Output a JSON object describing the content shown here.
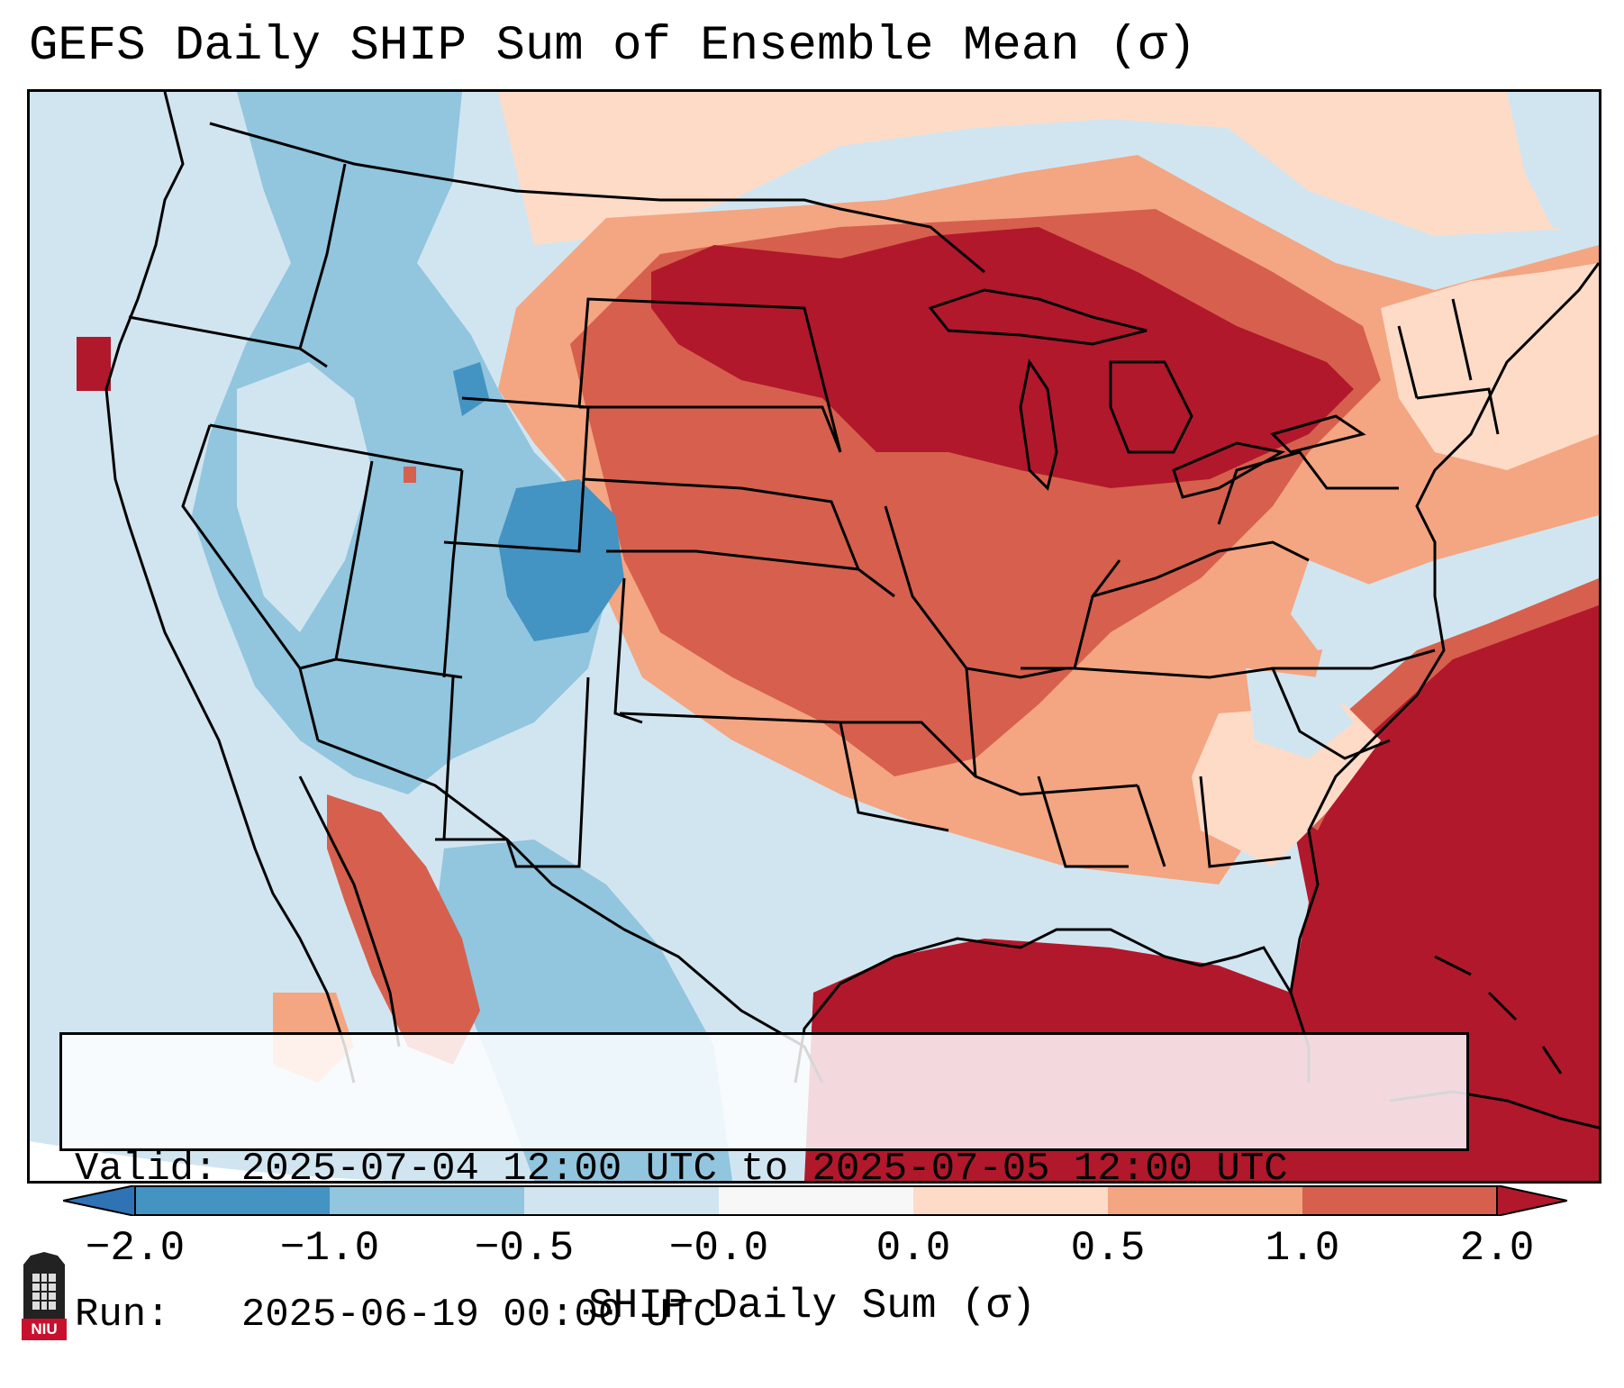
{
  "title": "GEFS Daily SHIP Sum of Ensemble Mean (σ)",
  "info": {
    "valid_label": "Valid:",
    "valid_value": "2025-07-04 12:00 UTC to 2025-07-05 12:00 UTC",
    "run_label": "Run:",
    "run_value": "2025-06-19 00:00 UTC"
  },
  "colorbar": {
    "label": "SHIP Daily Sum (σ)",
    "ticks": [
      "−2.0",
      "−1.0",
      "−0.5",
      "−0.0",
      "0.0",
      "0.5",
      "1.0",
      "2.0"
    ],
    "colors": [
      "#2f73b4",
      "#4393c3",
      "#92c5de",
      "#d1e5f0",
      "#f7f7f7",
      "#fddbc7",
      "#f4a582",
      "#d6604d",
      "#b2182b"
    ]
  },
  "logo": {
    "text": "NIU",
    "color": "#c8102e"
  },
  "legend_levels": {
    "strong_negative": "#4393c3",
    "moderate_negative": "#92c5de",
    "weak_negative": "#d1e5f0",
    "weak_positive": "#fddbc7",
    "moderate_positive": "#f4a582",
    "strong_positive": "#d6604d",
    "extreme_positive": "#b2182b"
  }
}
